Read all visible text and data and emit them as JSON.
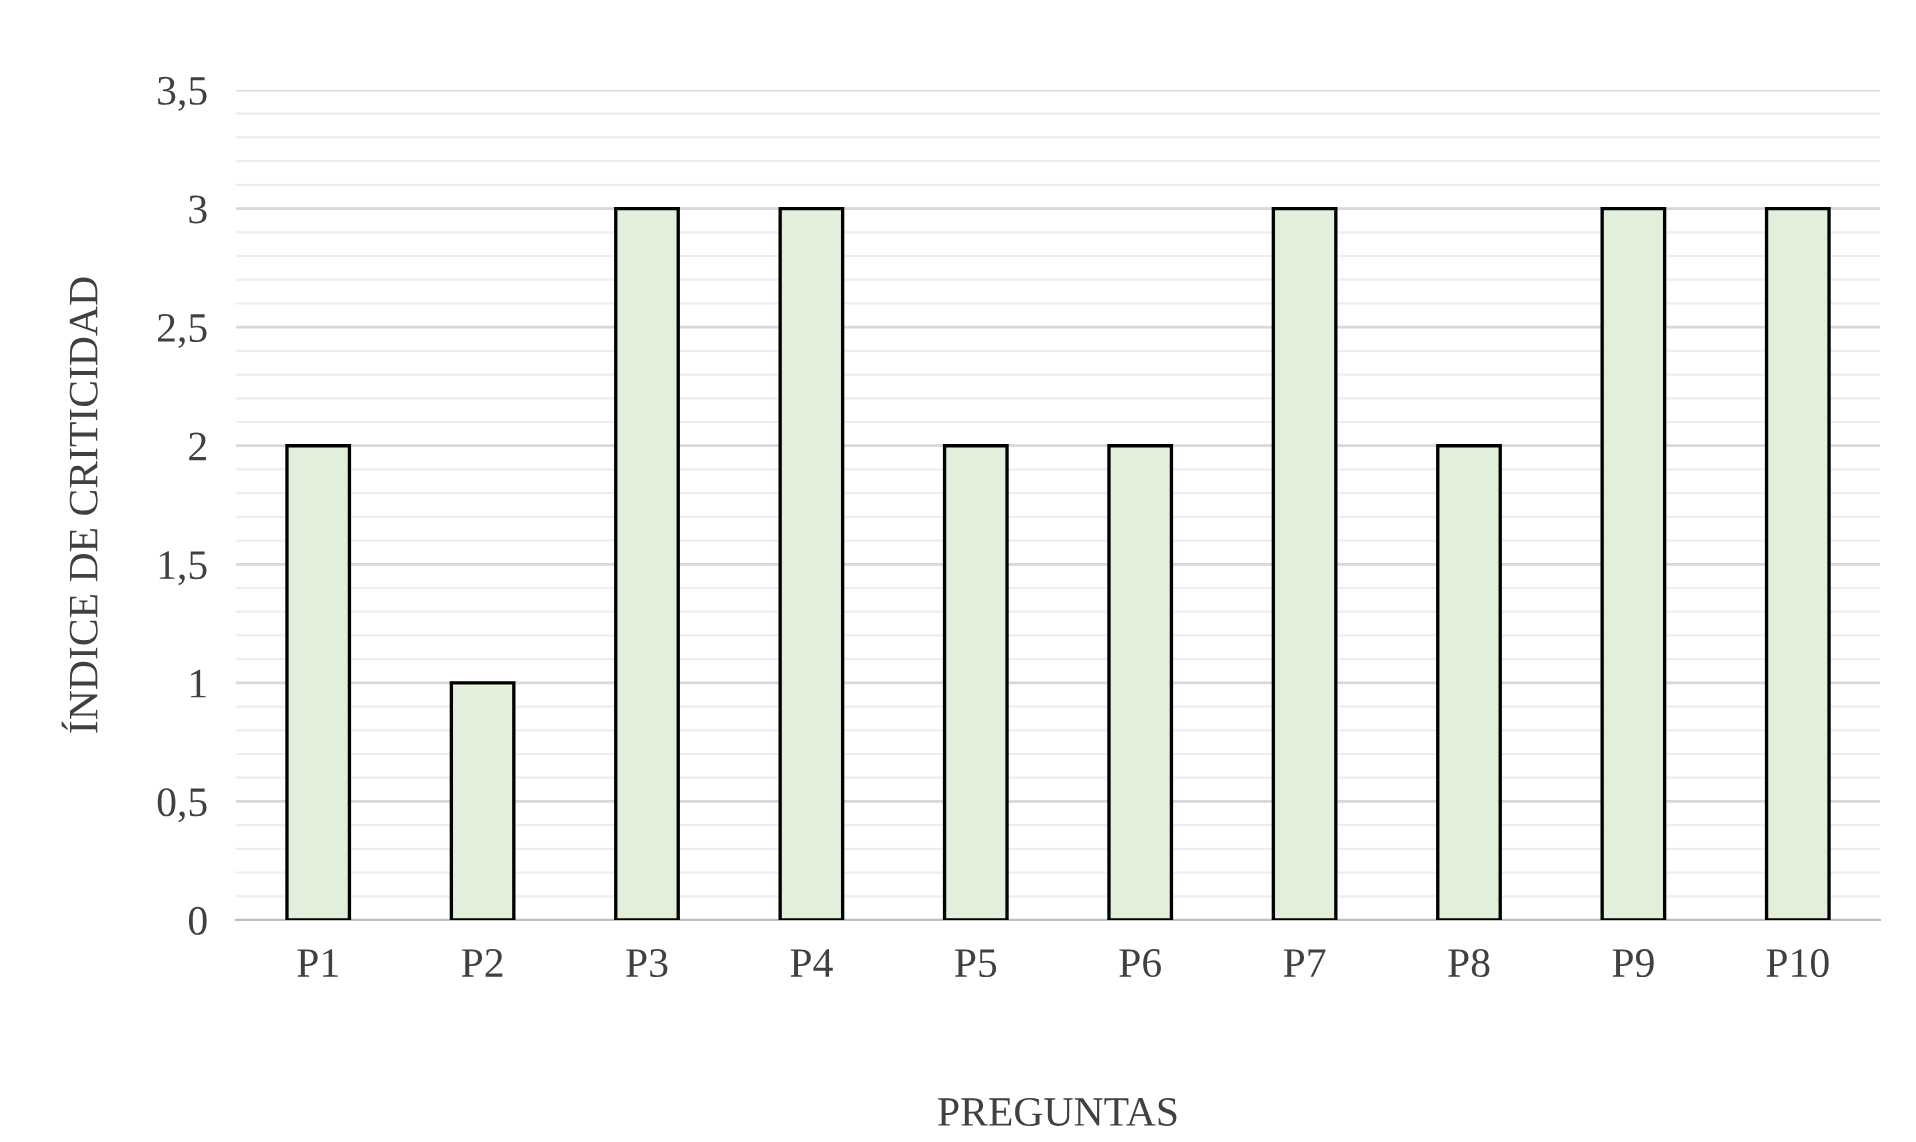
{
  "chart_data": {
    "type": "bar",
    "xlabel": "PREGUNTAS",
    "ylabel": "ÍNDICE DE CRITICIDAD",
    "categories": [
      "P1",
      "P2",
      "P3",
      "P4",
      "P5",
      "P6",
      "P7",
      "P8",
      "P9",
      "P10"
    ],
    "values": [
      2,
      1,
      3,
      3,
      2,
      2,
      3,
      2,
      3,
      3
    ],
    "color": "#e2efda",
    "ylim": [
      0,
      3.5
    ],
    "yticks": [
      0,
      {
        "value": 0.5,
        "label": "0,5"
      },
      1,
      {
        "value": 1.5,
        "label": "1,5"
      },
      2,
      {
        "value": 2.5,
        "label": "2,5"
      },
      3,
      {
        "value": 3.5,
        "label": "3,5"
      }
    ],
    "grid": "y"
  }
}
